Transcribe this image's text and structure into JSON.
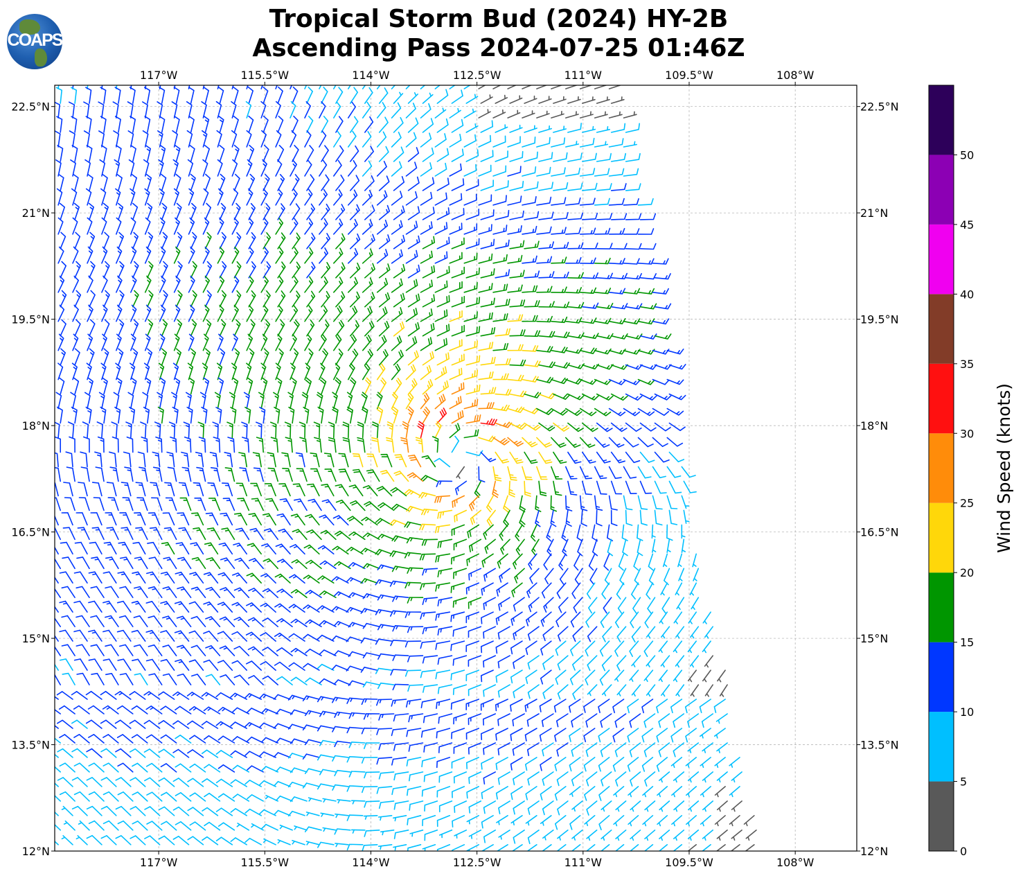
{
  "title": {
    "line1": "Tropical Storm Bud (2024) HY-2B",
    "line2": "Ascending Pass 2024-07-25 01:46Z"
  },
  "logo": {
    "text": "COAPS"
  },
  "chart_data": {
    "type": "barb",
    "title": "Tropical Storm Bud (2024) HY-2B Ascending Pass 2024-07-25 01:46Z",
    "x_ticks": [
      {
        "value": -117,
        "label": "117°W"
      },
      {
        "value": -115.5,
        "label": "115.5°W"
      },
      {
        "value": -114,
        "label": "114°W"
      },
      {
        "value": -112.5,
        "label": "112.5°W"
      },
      {
        "value": -111,
        "label": "111°W"
      },
      {
        "value": -109.5,
        "label": "109.5°W"
      },
      {
        "value": -108,
        "label": "108°W"
      }
    ],
    "y_ticks": [
      {
        "value": 22.5,
        "label": "22.5°N"
      },
      {
        "value": 21,
        "label": "21°N"
      },
      {
        "value": 19.5,
        "label": "19.5°N"
      },
      {
        "value": 18,
        "label": "18°N"
      },
      {
        "value": 16.5,
        "label": "16.5°N"
      },
      {
        "value": 15,
        "label": "15°N"
      },
      {
        "value": 13.5,
        "label": "13.5°N"
      },
      {
        "value": 12,
        "label": "12°N"
      }
    ],
    "xlim": [
      -118.47,
      -107.13
    ],
    "ylim": [
      12,
      22.8
    ],
    "grid": true,
    "storm_center": {
      "lon": -112.75,
      "lat": 17.55
    },
    "max_wind_knots": 33,
    "swath_east_edge": [
      [
        -110.5,
        22.8
      ],
      [
        -109.84,
        19.5
      ],
      [
        -109.5,
        16.8
      ],
      [
        -109.06,
        15
      ],
      [
        -108.45,
        12
      ]
    ],
    "colorbar": {
      "label": "Wind Speed (knots)",
      "ticks": [
        0,
        5,
        10,
        15,
        20,
        25,
        30,
        35,
        40,
        45,
        50
      ],
      "range": [
        0,
        55
      ],
      "bins": [
        {
          "min": 0,
          "max": 5,
          "color": "#595959"
        },
        {
          "min": 5,
          "max": 10,
          "color": "#00bfff"
        },
        {
          "min": 10,
          "max": 15,
          "color": "#0037ff"
        },
        {
          "min": 15,
          "max": 20,
          "color": "#009600"
        },
        {
          "min": 20,
          "max": 25,
          "color": "#ffd70a"
        },
        {
          "min": 25,
          "max": 30,
          "color": "#ff8c0a"
        },
        {
          "min": 30,
          "max": 35,
          "color": "#ff1010"
        },
        {
          "min": 35,
          "max": 40,
          "color": "#823c28"
        },
        {
          "min": 40,
          "max": 45,
          "color": "#f000f0"
        },
        {
          "min": 45,
          "max": 50,
          "color": "#8c00b4"
        },
        {
          "min": 50,
          "max": 55,
          "color": "#2d005a"
        }
      ]
    }
  }
}
